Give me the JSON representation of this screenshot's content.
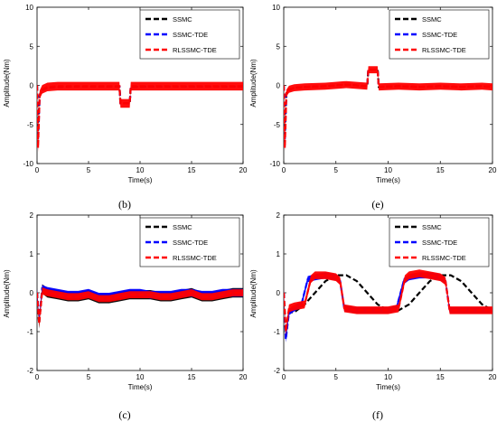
{
  "chart_data": [
    {
      "type": "line",
      "caption": "(b)",
      "xlabel": "Time(s)",
      "ylabel": "Amplitude(Nm)",
      "xlim": [
        0,
        20
      ],
      "ylim": [
        -10,
        10
      ],
      "xticks": [
        0,
        5,
        10,
        15,
        20
      ],
      "yticks": [
        -10,
        -5,
        0,
        5,
        10
      ],
      "legend_position": "top-right",
      "series": [
        {
          "name": "SSMC",
          "color": "#000000",
          "dash": "dashed",
          "x": [
            0,
            0.1,
            0.25,
            0.5,
            1,
            2,
            4,
            6,
            8,
            8.1,
            9,
            9.1,
            11,
            13,
            15,
            17,
            19,
            20
          ],
          "y": [
            0,
            -6,
            -1.2,
            -0.6,
            -0.3,
            -0.2,
            -0.15,
            -0.15,
            -0.15,
            -2.3,
            -2.3,
            -0.2,
            -0.15,
            -0.15,
            -0.15,
            -0.15,
            -0.15,
            -0.15
          ]
        },
        {
          "name": "SSMC-TDE",
          "color": "#0000ff",
          "dash": "dashed",
          "x": [
            0,
            0.1,
            0.25,
            0.5,
            1,
            2,
            4,
            6,
            8,
            8.1,
            9,
            9.1,
            11,
            13,
            15,
            17,
            19,
            20
          ],
          "y": [
            0,
            -7,
            -1.3,
            -0.6,
            -0.3,
            -0.2,
            -0.15,
            -0.15,
            -0.15,
            -2.3,
            -2.3,
            -0.2,
            -0.15,
            -0.15,
            -0.15,
            -0.15,
            -0.15,
            -0.15
          ]
        },
        {
          "name": "RLSSMC-TDE",
          "color": "#ff0000",
          "dash": "dashed",
          "band": 0.55,
          "x": [
            0,
            0.1,
            0.25,
            0.5,
            1,
            2,
            4,
            6,
            8,
            8.1,
            9,
            9.1,
            11,
            13,
            15,
            17,
            19,
            20
          ],
          "y": [
            0,
            -8,
            -1.2,
            -0.5,
            -0.2,
            -0.1,
            -0.1,
            -0.1,
            -0.1,
            -2.3,
            -2.3,
            -0.1,
            -0.1,
            -0.1,
            -0.1,
            -0.1,
            -0.1,
            -0.1
          ]
        }
      ]
    },
    {
      "type": "line",
      "caption": "(e)",
      "xlabel": "Time(s)",
      "ylabel": "Amplitude(Nm)",
      "xlim": [
        0,
        20
      ],
      "ylim": [
        -10,
        10
      ],
      "xticks": [
        0,
        5,
        10,
        15,
        20
      ],
      "yticks": [
        -10,
        -5,
        0,
        5,
        10
      ],
      "legend_position": "top-right",
      "series": [
        {
          "name": "SSMC",
          "color": "#000000",
          "dash": "dashed",
          "x": [
            0,
            0.1,
            0.25,
            0.5,
            1,
            2,
            4,
            6,
            8,
            8.1,
            9,
            9.1,
            11,
            13,
            15,
            17,
            19,
            20
          ],
          "y": [
            0,
            -6,
            -1.0,
            -0.6,
            -0.3,
            -0.2,
            -0.1,
            0.1,
            -0.1,
            2.0,
            2.0,
            -0.2,
            -0.1,
            -0.2,
            -0.1,
            -0.2,
            -0.1,
            -0.2
          ]
        },
        {
          "name": "SSMC-TDE",
          "color": "#0000ff",
          "dash": "dashed",
          "x": [
            0,
            0.1,
            0.25,
            0.5,
            1,
            2,
            4,
            6,
            8,
            8.1,
            9,
            9.1,
            11,
            13,
            15,
            17,
            19,
            20
          ],
          "y": [
            0,
            -7,
            -1.1,
            -0.6,
            -0.3,
            -0.2,
            -0.1,
            0.1,
            -0.1,
            2.0,
            2.0,
            -0.2,
            -0.1,
            -0.2,
            -0.1,
            -0.2,
            -0.1,
            -0.2
          ]
        },
        {
          "name": "RLSSMC-TDE",
          "color": "#ff0000",
          "dash": "dashed",
          "band": 0.45,
          "x": [
            0,
            0.1,
            0.25,
            0.5,
            1,
            2,
            4,
            6,
            8,
            8.1,
            9,
            9.1,
            11,
            13,
            15,
            17,
            19,
            20
          ],
          "y": [
            0,
            -8,
            -1.0,
            -0.5,
            -0.3,
            -0.2,
            -0.1,
            0.1,
            -0.1,
            2.0,
            2.0,
            -0.2,
            -0.1,
            -0.2,
            -0.1,
            -0.2,
            -0.1,
            -0.2
          ]
        }
      ]
    },
    {
      "type": "line",
      "caption": "(c)",
      "xlabel": "Time(s)",
      "ylabel": "Amplitude(Nm)",
      "xlim": [
        0,
        20
      ],
      "ylim": [
        -2,
        2
      ],
      "xticks": [
        0,
        5,
        10,
        15,
        20
      ],
      "yticks": [
        -2,
        -1,
        0,
        1,
        2
      ],
      "legend_position": "top-right",
      "series": [
        {
          "name": "SSMC",
          "color": "#000000",
          "dash": "dashed",
          "band": 0.12,
          "x": [
            0,
            0.2,
            0.5,
            1,
            2,
            3,
            4,
            5,
            6,
            7,
            8,
            9,
            10,
            11,
            12,
            13,
            14,
            15,
            16,
            17,
            18,
            19,
            20
          ],
          "y": [
            0,
            -0.8,
            0.1,
            0.0,
            -0.05,
            -0.1,
            -0.1,
            -0.05,
            -0.15,
            -0.15,
            -0.1,
            -0.05,
            -0.05,
            -0.05,
            -0.1,
            -0.1,
            -0.05,
            0.0,
            -0.1,
            -0.1,
            -0.05,
            0.0,
            0.0
          ]
        },
        {
          "name": "SSMC-TDE",
          "color": "#0000ff",
          "dash": "dashed",
          "band": 0.1,
          "x": [
            0,
            0.2,
            0.5,
            1,
            2,
            3,
            4,
            5,
            6,
            7,
            8,
            9,
            10,
            11,
            12,
            13,
            14,
            15,
            16,
            17,
            18,
            19,
            20
          ],
          "y": [
            0,
            -0.7,
            0.1,
            0.05,
            0.0,
            -0.05,
            -0.05,
            0.0,
            -0.1,
            -0.1,
            -0.05,
            0.0,
            0.0,
            -0.05,
            -0.05,
            -0.05,
            0.0,
            0.0,
            -0.05,
            -0.05,
            0.0,
            0.0,
            0.0
          ]
        },
        {
          "name": "RLSSMC-TDE",
          "color": "#ff0000",
          "dash": "dashed",
          "band": 0.09,
          "x": [
            0,
            0.2,
            0.5,
            1,
            2,
            3,
            4,
            5,
            6,
            7,
            8,
            9,
            10,
            11,
            12,
            13,
            14,
            15,
            16,
            17,
            18,
            19,
            20
          ],
          "y": [
            0,
            -0.8,
            0.05,
            0.0,
            -0.05,
            -0.1,
            -0.1,
            -0.05,
            -0.15,
            -0.15,
            -0.1,
            -0.05,
            -0.05,
            -0.05,
            -0.1,
            -0.1,
            -0.05,
            0.0,
            -0.1,
            -0.1,
            -0.05,
            0.0,
            0.0
          ]
        }
      ]
    },
    {
      "type": "line",
      "caption": "(f)",
      "xlabel": "Time(s)",
      "ylabel": "Amplitude(Nm)",
      "xlim": [
        0,
        20
      ],
      "ylim": [
        -2,
        2
      ],
      "xticks": [
        0,
        5,
        10,
        15,
        20
      ],
      "yticks": [
        -2,
        -1,
        0,
        1,
        2
      ],
      "legend_position": "top-right",
      "series": [
        {
          "name": "SSMC",
          "color": "#000000",
          "dash": "dashed",
          "x": [
            0,
            0.2,
            0.5,
            1,
            2,
            3,
            4,
            5,
            6,
            7,
            8,
            9,
            10,
            11,
            12,
            13,
            14,
            15,
            16,
            17,
            18,
            19,
            20
          ],
          "y": [
            0,
            -1.0,
            -0.5,
            -0.5,
            -0.3,
            0.0,
            0.3,
            0.45,
            0.45,
            0.3,
            0.0,
            -0.3,
            -0.45,
            -0.45,
            -0.3,
            0.0,
            0.3,
            0.45,
            0.45,
            0.3,
            0.0,
            -0.3,
            -0.45
          ]
        },
        {
          "name": "SSMC-TDE",
          "color": "#0000ff",
          "dash": "dashed",
          "band": 0.08,
          "x": [
            0,
            0.2,
            0.5,
            1,
            1.7,
            2.3,
            3,
            4,
            5,
            5.4,
            5.8,
            7,
            8,
            9,
            10,
            10.8,
            11.5,
            12,
            13,
            14,
            15,
            15.5,
            15.9,
            17,
            18,
            19,
            20
          ],
          "y": [
            0,
            -1.2,
            -0.5,
            -0.4,
            -0.3,
            0.35,
            0.4,
            0.45,
            0.4,
            0.3,
            -0.4,
            -0.45,
            -0.45,
            -0.45,
            -0.45,
            -0.4,
            0.3,
            0.4,
            0.45,
            0.45,
            0.4,
            0.3,
            -0.45,
            -0.45,
            -0.45,
            -0.45,
            -0.45
          ]
        },
        {
          "name": "RLSSMC-TDE",
          "color": "#ff0000",
          "dash": "dashed",
          "band": 0.1,
          "x": [
            0,
            0.2,
            0.5,
            1,
            2,
            2.6,
            3,
            4,
            5,
            5.4,
            5.8,
            7,
            8,
            9,
            10,
            11,
            11.6,
            12,
            13,
            14,
            15,
            15.5,
            15.9,
            17,
            18,
            19,
            20
          ],
          "y": [
            0,
            -1.0,
            -0.4,
            -0.35,
            -0.3,
            0.35,
            0.45,
            0.45,
            0.4,
            0.3,
            -0.4,
            -0.45,
            -0.45,
            -0.45,
            -0.45,
            -0.4,
            0.35,
            0.45,
            0.5,
            0.45,
            0.4,
            0.3,
            -0.45,
            -0.45,
            -0.45,
            -0.45,
            -0.45
          ]
        }
      ]
    }
  ]
}
